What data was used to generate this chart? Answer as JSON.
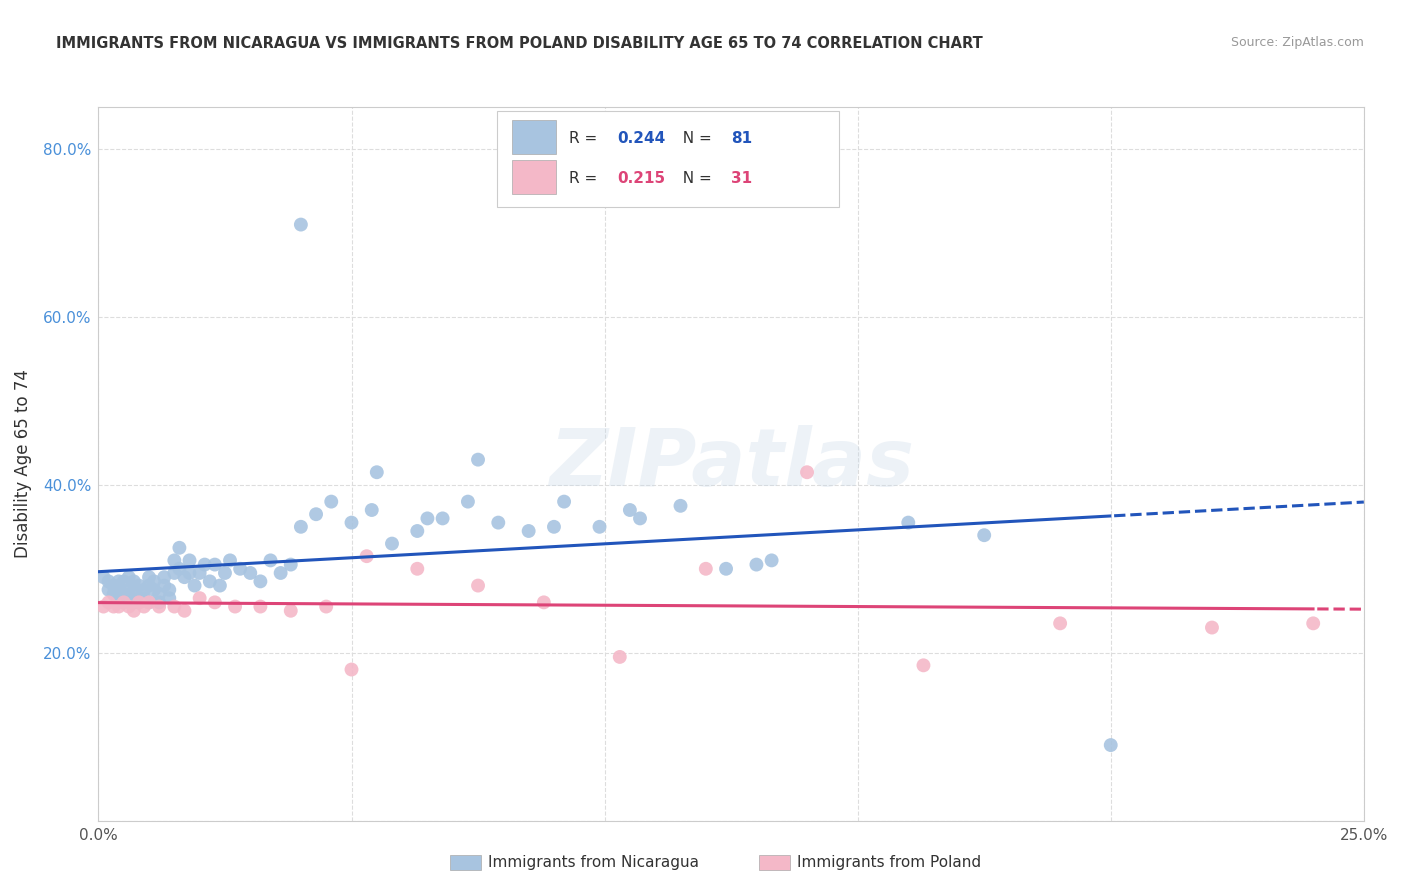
{
  "title": "IMMIGRANTS FROM NICARAGUA VS IMMIGRANTS FROM POLAND DISABILITY AGE 65 TO 74 CORRELATION CHART",
  "source": "Source: ZipAtlas.com",
  "ylabel": "Disability Age 65 to 74",
  "xlim": [
    0.0,
    0.25
  ],
  "ylim": [
    0.0,
    0.85
  ],
  "xticks": [
    0.0,
    0.05,
    0.1,
    0.15,
    0.2,
    0.25
  ],
  "xticklabels": [
    "0.0%",
    "",
    "",
    "",
    "",
    "25.0%"
  ],
  "yticks": [
    0.0,
    0.2,
    0.4,
    0.6,
    0.8
  ],
  "yticklabels": [
    "",
    "20.0%",
    "40.0%",
    "60.0%",
    "80.0%"
  ],
  "nicaragua_color": "#a8c4e0",
  "poland_color": "#f4b8c8",
  "nicaragua_line_color": "#2255bb",
  "poland_line_color": "#dd4477",
  "legend_r_nicaragua": "0.244",
  "legend_n_nicaragua": "81",
  "legend_r_poland": "0.215",
  "legend_n_poland": "31",
  "legend_label_nicaragua": "Immigrants from Nicaragua",
  "legend_label_poland": "Immigrants from Poland",
  "watermark": "ZIPatlas",
  "nicaragua_x": [
    0.001,
    0.002,
    0.002,
    0.003,
    0.003,
    0.004,
    0.004,
    0.004,
    0.005,
    0.005,
    0.005,
    0.006,
    0.006,
    0.006,
    0.007,
    0.007,
    0.007,
    0.008,
    0.008,
    0.008,
    0.009,
    0.009,
    0.01,
    0.01,
    0.01,
    0.011,
    0.011,
    0.012,
    0.012,
    0.013,
    0.013,
    0.014,
    0.014,
    0.015,
    0.015,
    0.016,
    0.016,
    0.017,
    0.018,
    0.018,
    0.019,
    0.02,
    0.021,
    0.022,
    0.023,
    0.024,
    0.025,
    0.026,
    0.028,
    0.03,
    0.032,
    0.034,
    0.036,
    0.038,
    0.04,
    0.043,
    0.046,
    0.05,
    0.054,
    0.058,
    0.063,
    0.068,
    0.073,
    0.079,
    0.085,
    0.092,
    0.099,
    0.107,
    0.115,
    0.124,
    0.133,
    0.055,
    0.065,
    0.075,
    0.09,
    0.105,
    0.13,
    0.16,
    0.175,
    0.2,
    0.04
  ],
  "nicaragua_y": [
    0.29,
    0.275,
    0.285,
    0.27,
    0.28,
    0.265,
    0.275,
    0.285,
    0.26,
    0.27,
    0.285,
    0.265,
    0.275,
    0.29,
    0.26,
    0.275,
    0.285,
    0.265,
    0.28,
    0.26,
    0.275,
    0.265,
    0.28,
    0.26,
    0.29,
    0.275,
    0.285,
    0.27,
    0.26,
    0.28,
    0.29,
    0.265,
    0.275,
    0.31,
    0.295,
    0.325,
    0.3,
    0.29,
    0.31,
    0.295,
    0.28,
    0.295,
    0.305,
    0.285,
    0.305,
    0.28,
    0.295,
    0.31,
    0.3,
    0.295,
    0.285,
    0.31,
    0.295,
    0.305,
    0.35,
    0.365,
    0.38,
    0.355,
    0.37,
    0.33,
    0.345,
    0.36,
    0.38,
    0.355,
    0.345,
    0.38,
    0.35,
    0.36,
    0.375,
    0.3,
    0.31,
    0.415,
    0.36,
    0.43,
    0.35,
    0.37,
    0.305,
    0.355,
    0.34,
    0.09,
    0.71
  ],
  "poland_x": [
    0.001,
    0.002,
    0.003,
    0.004,
    0.005,
    0.006,
    0.007,
    0.008,
    0.009,
    0.01,
    0.012,
    0.015,
    0.017,
    0.02,
    0.023,
    0.027,
    0.032,
    0.038,
    0.045,
    0.053,
    0.063,
    0.075,
    0.088,
    0.103,
    0.12,
    0.14,
    0.163,
    0.19,
    0.22,
    0.05,
    0.24
  ],
  "poland_y": [
    0.255,
    0.26,
    0.255,
    0.255,
    0.26,
    0.255,
    0.25,
    0.26,
    0.255,
    0.26,
    0.255,
    0.255,
    0.25,
    0.265,
    0.26,
    0.255,
    0.255,
    0.25,
    0.255,
    0.315,
    0.3,
    0.28,
    0.26,
    0.195,
    0.3,
    0.415,
    0.185,
    0.235,
    0.23,
    0.18,
    0.235
  ]
}
